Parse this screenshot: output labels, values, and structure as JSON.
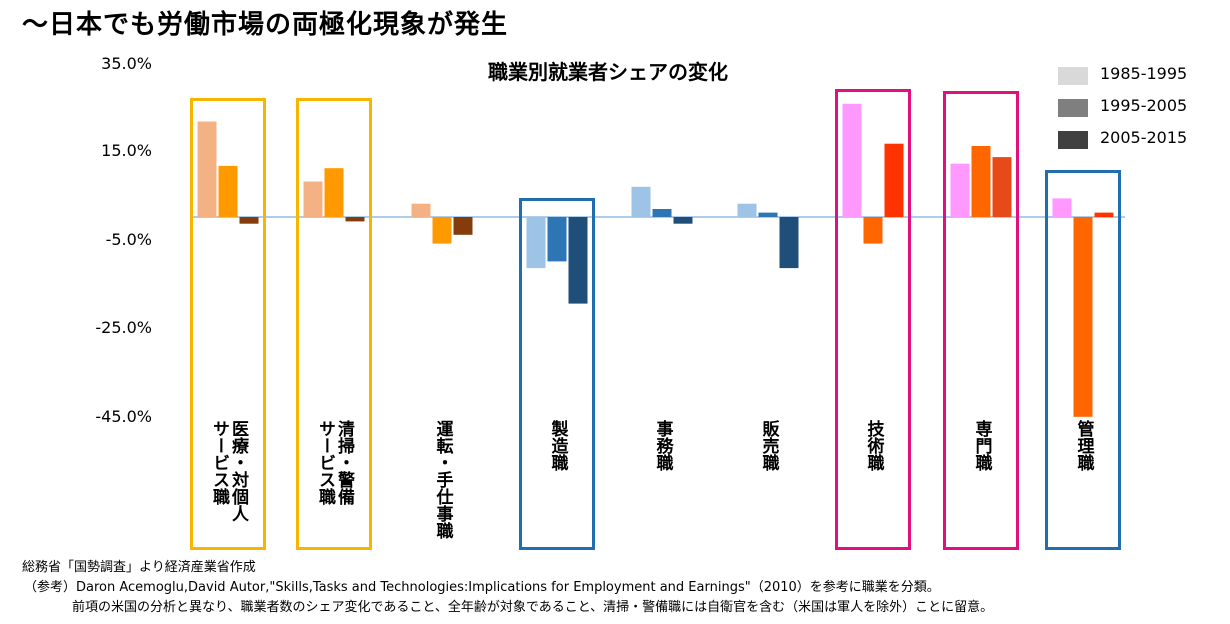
{
  "header": {
    "title": "〜日本でも労働市場の両極化現象が発生"
  },
  "chart_data": {
    "type": "bar",
    "title": "職業別就業者シェアの変化",
    "y_ticks": [
      "35.0%",
      "15.0%",
      "-5.0%",
      "-25.0%",
      "-45.0%"
    ],
    "ylim": [
      -45,
      35
    ],
    "legend": {
      "position": "top-right",
      "entries": [
        {
          "name": "1985-1995",
          "color": "#d9d9d9"
        },
        {
          "name": "1995-2005",
          "color": "#7f7f7f"
        },
        {
          "name": "2005-2015",
          "color": "#404040"
        }
      ]
    },
    "series": [
      {
        "name": "1985-1995",
        "values": [
          21.5,
          8.0,
          3.0,
          -11.5,
          6.8,
          3.0,
          25.5,
          12.0,
          4.2
        ]
      },
      {
        "name": "1995-2005",
        "values": [
          11.5,
          11.0,
          -6.0,
          -10.0,
          1.8,
          1.0,
          -6.0,
          16.0,
          -45.0
        ]
      },
      {
        "name": "2005-2015",
        "values": [
          -1.5,
          -1.0,
          -4.0,
          -19.5,
          -1.5,
          -11.5,
          16.5,
          13.5,
          1.0
        ]
      }
    ],
    "categories": [
      {
        "label": "医療・対個人\nサービス職",
        "colors": [
          "#f4b183",
          "#ff9900",
          "#843c0c"
        ],
        "box": "#f7b500"
      },
      {
        "label": "清掃・警備\nサービス職",
        "colors": [
          "#f4b183",
          "#ff9900",
          "#843c0c"
        ],
        "box": "#f7b500"
      },
      {
        "label": "運転・手仕事職",
        "colors": [
          "#f4b183",
          "#ff9900",
          "#843c0c"
        ],
        "box": ""
      },
      {
        "label": "製造職",
        "colors": [
          "#9dc3e6",
          "#2e75b6",
          "#1f4e79"
        ],
        "box": "#1f6fb0"
      },
      {
        "label": "事務職",
        "colors": [
          "#9dc3e6",
          "#2e75b6",
          "#1f4e79"
        ],
        "box": ""
      },
      {
        "label": "販売職",
        "colors": [
          "#9dc3e6",
          "#2e75b6",
          "#1f4e79"
        ],
        "box": ""
      },
      {
        "label": "技術職",
        "colors": [
          "#ff99ff",
          "#ff6600",
          "#ff3300"
        ],
        "box": "#e0107f"
      },
      {
        "label": "専門職",
        "colors": [
          "#ff99ff",
          "#ff6600",
          "#e64a19"
        ],
        "box": "#e0107f"
      },
      {
        "label": "管理職",
        "colors": [
          "#ff99ff",
          "#ff6600",
          "#ff3300"
        ],
        "box": "#1f6fb0"
      }
    ]
  },
  "notes": {
    "line1": "総務省「国勢調査」より経済産業省作成",
    "line2": "（参考）Daron Acemoglu,David Autor,\"Skills,Tasks and Technologies:Implications for Employment and Earnings\"（2010）を参考に職業を分類。",
    "line3": "前項の米国の分析と異なり、職業者数のシェア変化であること、全年齢が対象であること、清掃・警備職には自衛官を含む（米国は軍人を除外）ことに留意。"
  }
}
